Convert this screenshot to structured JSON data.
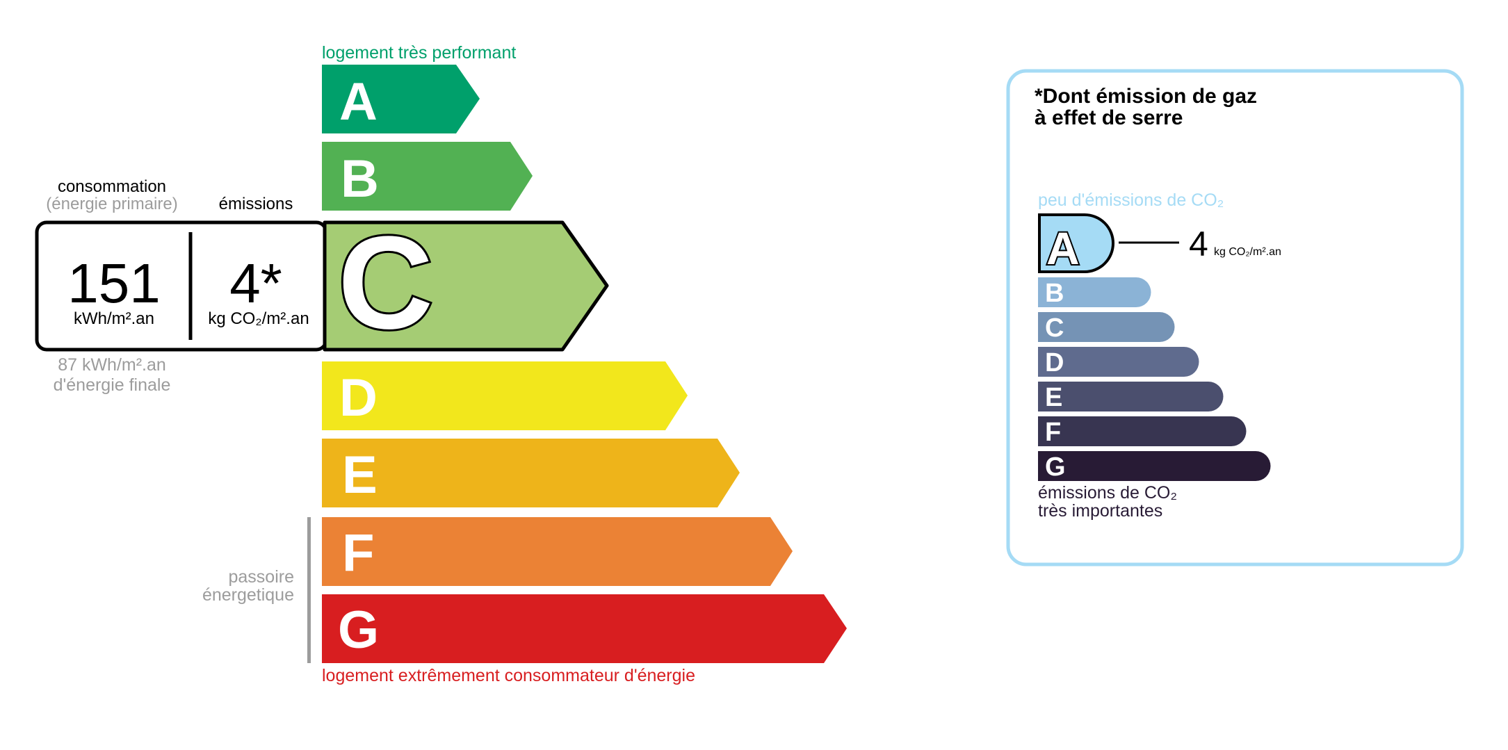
{
  "energy": {
    "top_label": "logement très performant",
    "bottom_label": "logement extrêmement consommateur d'énergie",
    "passoire_line1": "passoire",
    "passoire_line2": "énergetique",
    "consumption_header": "consommation",
    "consumption_subheader": "(énergie primaire)",
    "emissions_header": "émissions",
    "consumption_value": "151",
    "consumption_unit": "kWh/m².an",
    "emissions_value": "4*",
    "emissions_unit": "kg CO₂/m².an",
    "final_energy_value": "87 kWh/m².an",
    "final_energy_label": "d'énergie finale",
    "current_class": "C",
    "classes": [
      {
        "letter": "A",
        "color": "#00a06b"
      },
      {
        "letter": "B",
        "color": "#52b153"
      },
      {
        "letter": "C",
        "color": "#a5cc74"
      },
      {
        "letter": "D",
        "color": "#f2e71c"
      },
      {
        "letter": "E",
        "color": "#eeb41a"
      },
      {
        "letter": "F",
        "color": "#eb8235"
      },
      {
        "letter": "G",
        "color": "#d81e20"
      }
    ]
  },
  "ghg": {
    "title_line1": "*Dont émission de gaz",
    "title_line2": "à effet de serre",
    "top_label": "peu d'émissions de CO₂",
    "bottom_line1": "émissions de CO₂",
    "bottom_line2": "très importantes",
    "current_class": "A",
    "value": "4",
    "unit": "kg CO₂/m².an",
    "border_color": "#a5dbf5",
    "classes": [
      {
        "letter": "A",
        "color": "#a5dbf5"
      },
      {
        "letter": "B",
        "color": "#8bb3d6"
      },
      {
        "letter": "C",
        "color": "#7593b5"
      },
      {
        "letter": "D",
        "color": "#5f6b8e"
      },
      {
        "letter": "E",
        "color": "#4b4f6e"
      },
      {
        "letter": "F",
        "color": "#383551"
      },
      {
        "letter": "G",
        "color": "#281b35"
      }
    ]
  }
}
